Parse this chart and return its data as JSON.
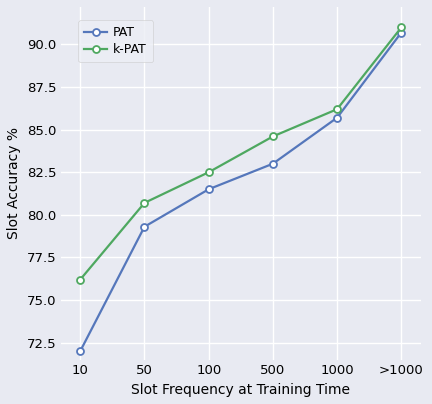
{
  "x_labels": [
    "10",
    "50",
    "100",
    "500",
    "1000",
    ">1000"
  ],
  "x_positions": [
    0,
    1,
    2,
    3,
    4,
    5
  ],
  "pat_values": [
    72.0,
    79.3,
    81.5,
    83.0,
    85.7,
    90.7
  ],
  "kpat_values": [
    76.2,
    80.7,
    82.5,
    84.6,
    86.2,
    91.0
  ],
  "pat_color": "#5577bb",
  "kpat_color": "#4ea860",
  "pat_label": "PAT",
  "kpat_label": "k-PAT",
  "xlabel": "Slot Frequency at Training Time",
  "ylabel": "Slot Accuracy %",
  "ylim": [
    71.5,
    92.2
  ],
  "yticks": [
    72.5,
    75.0,
    77.5,
    80.0,
    82.5,
    85.0,
    87.5,
    90.0
  ],
  "background_color": "#e8eaf2",
  "grid_color": "#ffffff",
  "marker": "o",
  "marker_size": 5,
  "linewidth": 1.6
}
